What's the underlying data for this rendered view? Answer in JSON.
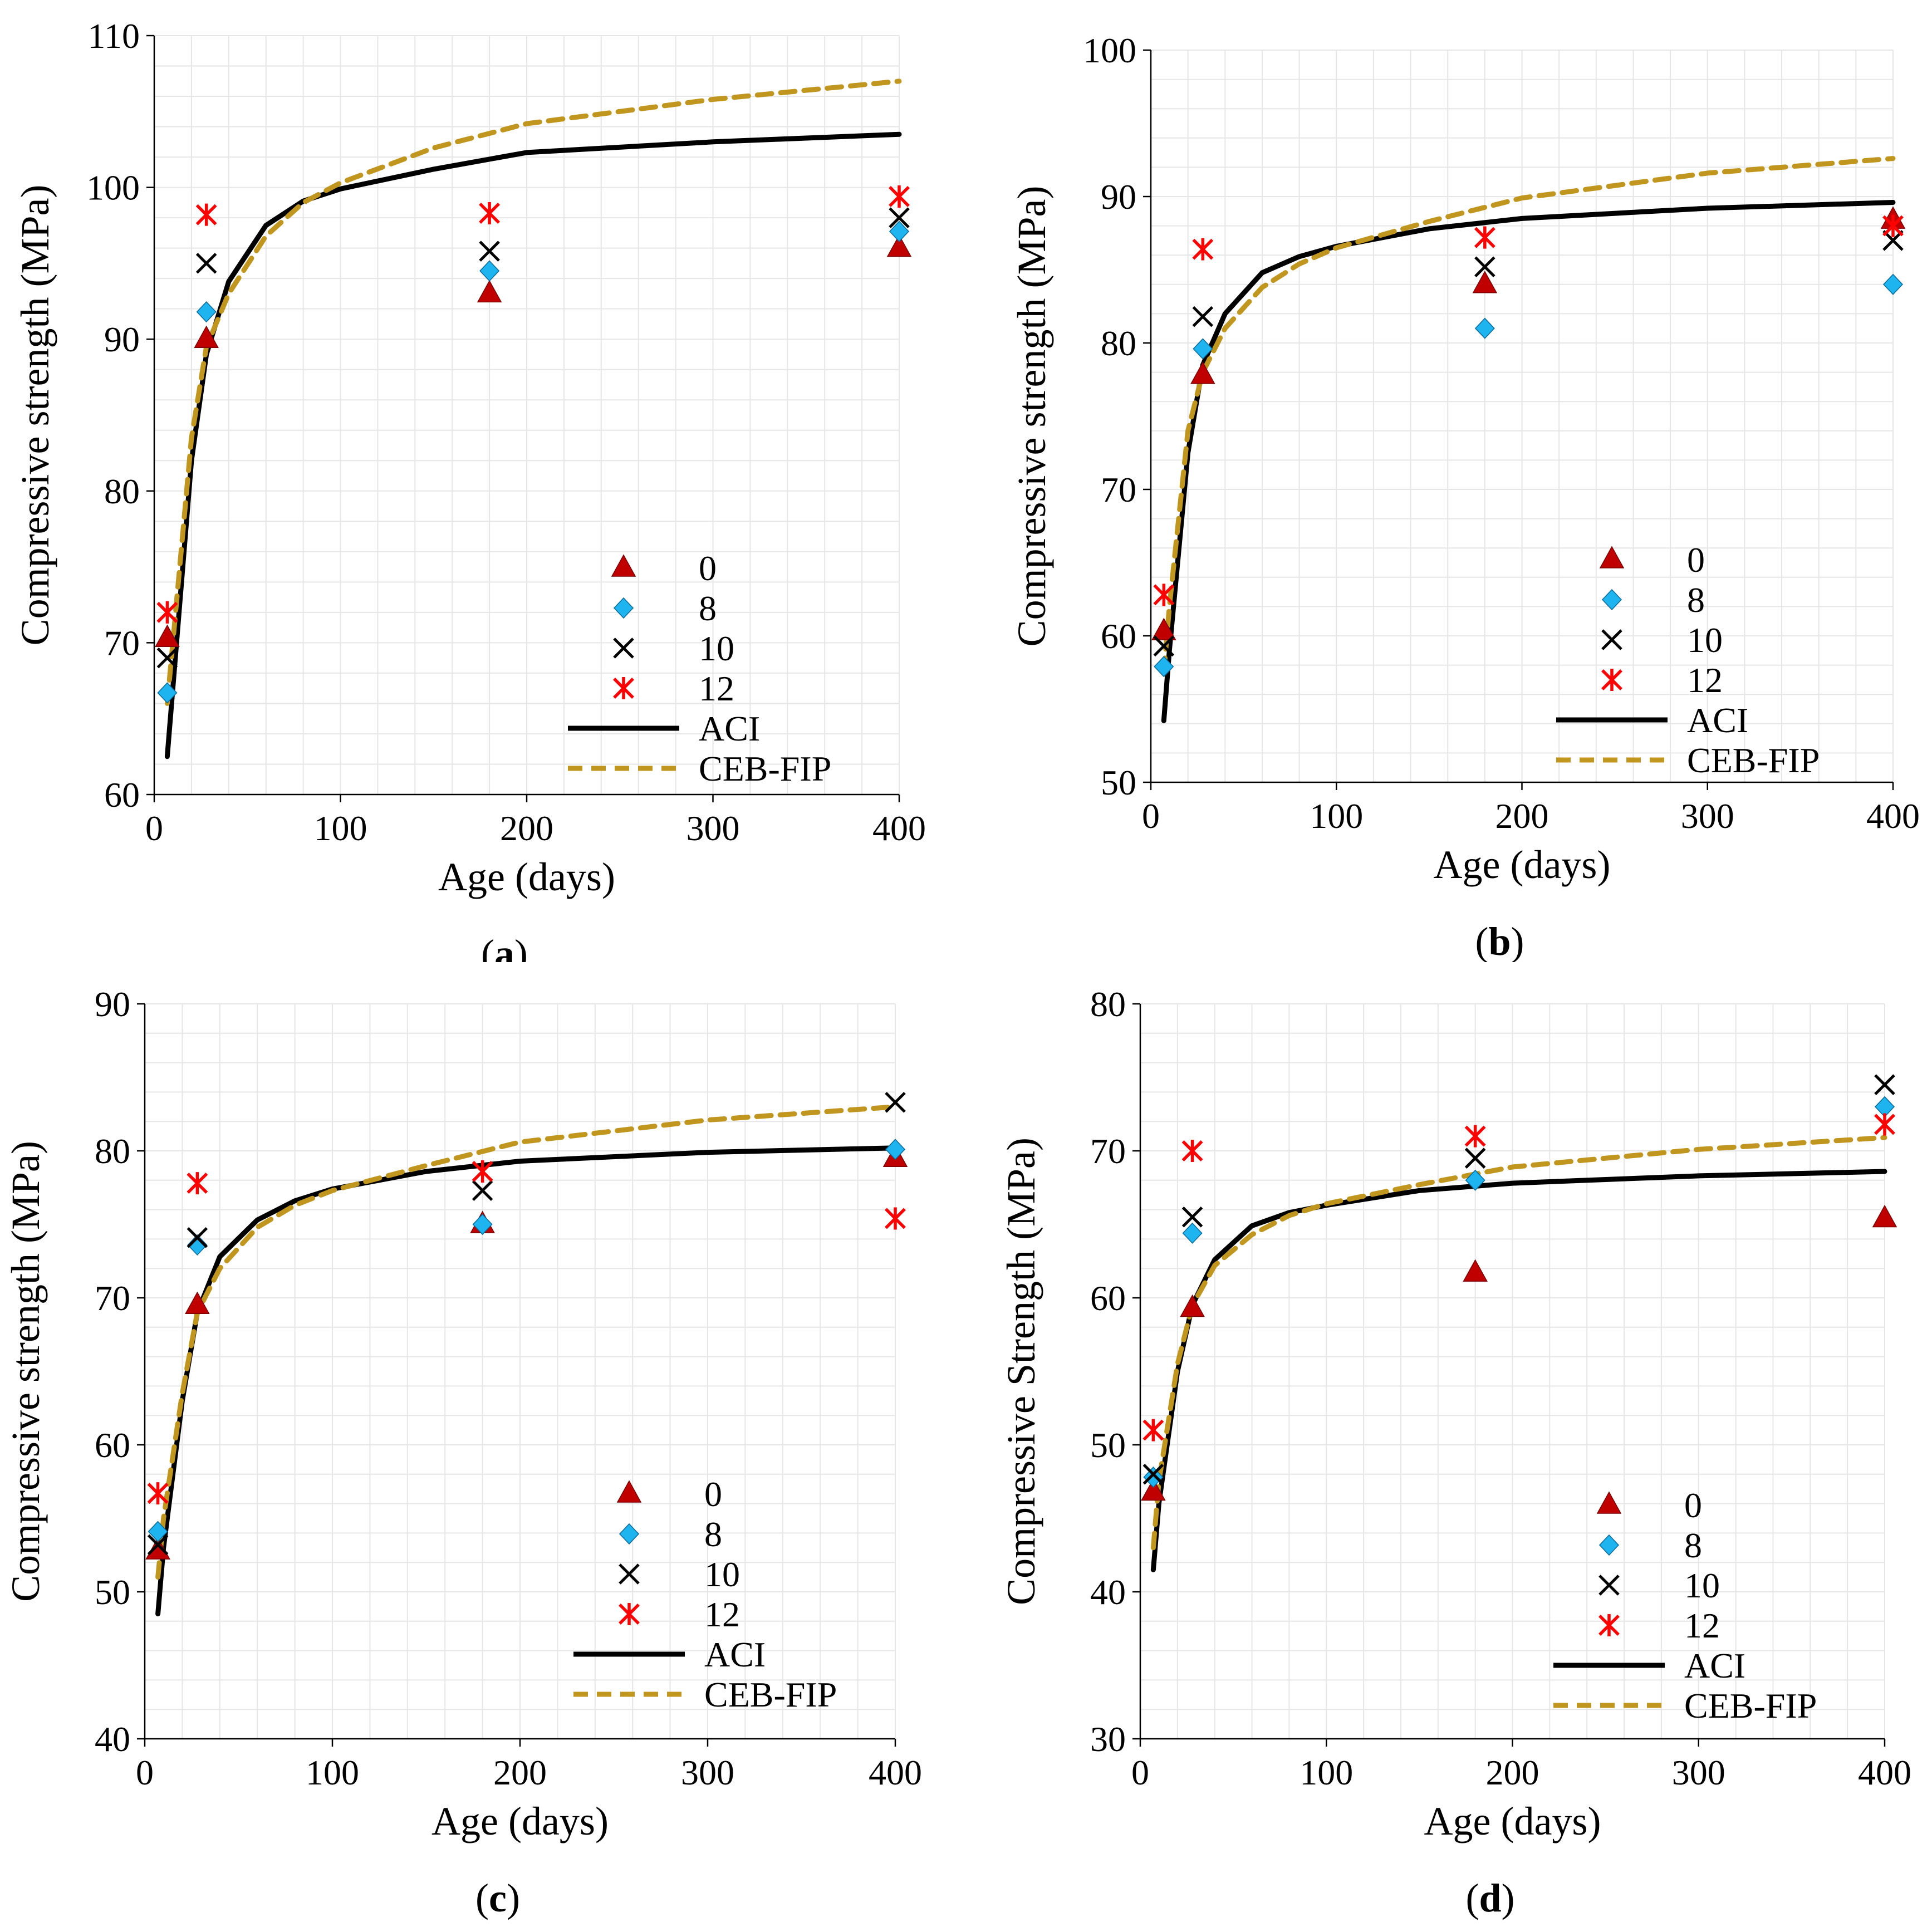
{
  "series_styles": {
    "0": {
      "marker": "triangle",
      "color": "#c00000"
    },
    "8": {
      "marker": "diamond",
      "color": "#1eb4f0"
    },
    "10": {
      "marker": "x",
      "color": "#000000"
    },
    "12": {
      "marker": "asterisk",
      "color": "#ff0000"
    },
    "ACI": {
      "line": "solid",
      "color": "#000000"
    },
    "CEB-FIP": {
      "line": "dashed",
      "color": "#c0961e"
    }
  },
  "chart_data": [
    {
      "type": "scatter",
      "caption": "(a)",
      "caption_letter": "a",
      "xlabel": "Age (days)",
      "ylabel": "Compressive strength (MPa)",
      "xlim": [
        0,
        400
      ],
      "ylim": [
        60,
        110
      ],
      "xticks": [
        0,
        100,
        200,
        300,
        400
      ],
      "yticks": [
        60,
        70,
        80,
        90,
        100,
        110
      ],
      "legend": [
        "0",
        "8",
        "10",
        "12",
        "ACI",
        "CEB-FIP"
      ],
      "series": [
        {
          "name": "0",
          "x": [
            7,
            28,
            180,
            400
          ],
          "y": [
            70.3,
            90.0,
            93.0,
            96.0
          ]
        },
        {
          "name": "8",
          "x": [
            7,
            28,
            180,
            400
          ],
          "y": [
            66.7,
            91.8,
            94.5,
            97.1
          ]
        },
        {
          "name": "10",
          "x": [
            7,
            28,
            180,
            400
          ],
          "y": [
            69.0,
            95.0,
            95.8,
            98.0
          ]
        },
        {
          "name": "12",
          "x": [
            7,
            28,
            180,
            400
          ],
          "y": [
            72.0,
            98.2,
            98.3,
            99.4
          ]
        },
        {
          "name": "ACI",
          "x": [
            7,
            10,
            20,
            28,
            40,
            60,
            80,
            100,
            150,
            200,
            300,
            400
          ],
          "y": [
            62.5,
            67.0,
            82.0,
            89.0,
            93.8,
            97.5,
            99.1,
            99.9,
            101.2,
            102.3,
            103.0,
            103.5
          ]
        },
        {
          "name": "CEB-FIP",
          "x": [
            7,
            10,
            20,
            28,
            40,
            60,
            80,
            100,
            150,
            200,
            300,
            400
          ],
          "y": [
            66.0,
            70.0,
            83.5,
            89.5,
            93.0,
            96.8,
            99.0,
            100.3,
            102.6,
            104.2,
            105.8,
            107.0
          ]
        }
      ]
    },
    {
      "type": "scatter",
      "caption": "(b)",
      "caption_letter": "b",
      "xlabel": "Age (days)",
      "ylabel": "Compressive strength (MPa)",
      "xlim": [
        0,
        400
      ],
      "ylim": [
        50,
        100
      ],
      "xticks": [
        0,
        100,
        200,
        300,
        400
      ],
      "yticks": [
        50,
        60,
        70,
        80,
        90,
        100
      ],
      "legend": [
        "0",
        "8",
        "10",
        "12",
        "ACI",
        "CEB-FIP"
      ],
      "series": [
        {
          "name": "0",
          "x": [
            7,
            28,
            180,
            400
          ],
          "y": [
            60.3,
            77.8,
            84.0,
            88.4
          ]
        },
        {
          "name": "8",
          "x": [
            7,
            28,
            180,
            400
          ],
          "y": [
            57.9,
            79.6,
            81.0,
            84.0
          ]
        },
        {
          "name": "10",
          "x": [
            7,
            28,
            180,
            400
          ],
          "y": [
            59.3,
            81.8,
            85.2,
            87.0
          ]
        },
        {
          "name": "12",
          "x": [
            7,
            28,
            180,
            400
          ],
          "y": [
            62.8,
            86.4,
            87.2,
            88.0
          ]
        },
        {
          "name": "ACI",
          "x": [
            7,
            10,
            20,
            28,
            40,
            60,
            80,
            100,
            150,
            200,
            300,
            400
          ],
          "y": [
            54.2,
            59.0,
            72.5,
            78.5,
            82.0,
            84.8,
            85.9,
            86.6,
            87.8,
            88.5,
            89.2,
            89.6
          ]
        },
        {
          "name": "CEB-FIP",
          "x": [
            7,
            10,
            20,
            28,
            40,
            60,
            80,
            100,
            150,
            200,
            300,
            400
          ],
          "y": [
            57.5,
            62.0,
            74.0,
            78.0,
            81.0,
            83.8,
            85.4,
            86.5,
            88.3,
            89.9,
            91.6,
            92.6
          ]
        }
      ]
    },
    {
      "type": "scatter",
      "caption": "(c)",
      "caption_letter": "c",
      "xlabel": "Age (days)",
      "ylabel": "Compressive strength (MPa)",
      "xlim": [
        0,
        400
      ],
      "ylim": [
        40,
        90
      ],
      "xticks": [
        0,
        100,
        200,
        300,
        400
      ],
      "yticks": [
        40,
        50,
        60,
        70,
        80,
        90
      ],
      "legend": [
        "0",
        "8",
        "10",
        "12",
        "ACI",
        "CEB-FIP"
      ],
      "series": [
        {
          "name": "0",
          "x": [
            7,
            28,
            180,
            400
          ],
          "y": [
            52.8,
            69.5,
            75.0,
            79.5
          ]
        },
        {
          "name": "8",
          "x": [
            7,
            28,
            180,
            400
          ],
          "y": [
            54.1,
            73.6,
            75.0,
            80.1
          ]
        },
        {
          "name": "10",
          "x": [
            7,
            28,
            180,
            400
          ],
          "y": [
            53.2,
            74.1,
            77.3,
            83.3
          ]
        },
        {
          "name": "12",
          "x": [
            7,
            28,
            180,
            400
          ],
          "y": [
            56.7,
            77.8,
            78.6,
            75.4
          ]
        },
        {
          "name": "ACI",
          "x": [
            7,
            10,
            20,
            28,
            40,
            60,
            80,
            100,
            150,
            200,
            300,
            400
          ],
          "y": [
            48.5,
            53.0,
            63.0,
            69.0,
            72.8,
            75.3,
            76.6,
            77.4,
            78.6,
            79.3,
            79.9,
            80.2
          ]
        },
        {
          "name": "CEB-FIP",
          "x": [
            7,
            10,
            20,
            28,
            40,
            60,
            80,
            100,
            150,
            200,
            300,
            400
          ],
          "y": [
            51.0,
            55.0,
            63.5,
            69.0,
            72.0,
            74.8,
            76.3,
            77.3,
            79.0,
            80.6,
            82.1,
            83.0
          ]
        }
      ]
    },
    {
      "type": "scatter",
      "caption": "(d)",
      "caption_letter": "d",
      "xlabel": "Age (days)",
      "ylabel": "Compressive Strength (MPa)",
      "xlim": [
        0,
        400
      ],
      "ylim": [
        30,
        80
      ],
      "xticks": [
        0,
        100,
        200,
        300,
        400
      ],
      "yticks": [
        30,
        40,
        50,
        60,
        70,
        80
      ],
      "legend": [
        "0",
        "8",
        "10",
        "12",
        "ACI",
        "CEB-FIP"
      ],
      "series": [
        {
          "name": "0",
          "x": [
            7,
            28,
            180,
            400
          ],
          "y": [
            46.8,
            59.3,
            61.7,
            65.4
          ]
        },
        {
          "name": "8",
          "x": [
            7,
            28,
            180,
            400
          ],
          "y": [
            47.8,
            64.4,
            68.0,
            73.0
          ]
        },
        {
          "name": "10",
          "x": [
            7,
            28,
            180,
            400
          ],
          "y": [
            48.0,
            65.5,
            69.5,
            74.5
          ]
        },
        {
          "name": "12",
          "x": [
            7,
            28,
            180,
            400
          ],
          "y": [
            51.0,
            70.0,
            71.0,
            71.8
          ]
        },
        {
          "name": "ACI",
          "x": [
            7,
            10,
            20,
            28,
            40,
            60,
            80,
            100,
            150,
            200,
            300,
            400
          ],
          "y": [
            41.5,
            46.0,
            55.0,
            59.5,
            62.6,
            64.9,
            65.8,
            66.3,
            67.3,
            67.8,
            68.3,
            68.6
          ]
        },
        {
          "name": "CEB-FIP",
          "x": [
            7,
            10,
            20,
            28,
            40,
            60,
            80,
            100,
            150,
            200,
            300,
            400
          ],
          "y": [
            43.0,
            47.5,
            55.5,
            59.5,
            62.2,
            64.3,
            65.6,
            66.4,
            67.7,
            68.9,
            70.1,
            70.9
          ]
        }
      ]
    }
  ]
}
